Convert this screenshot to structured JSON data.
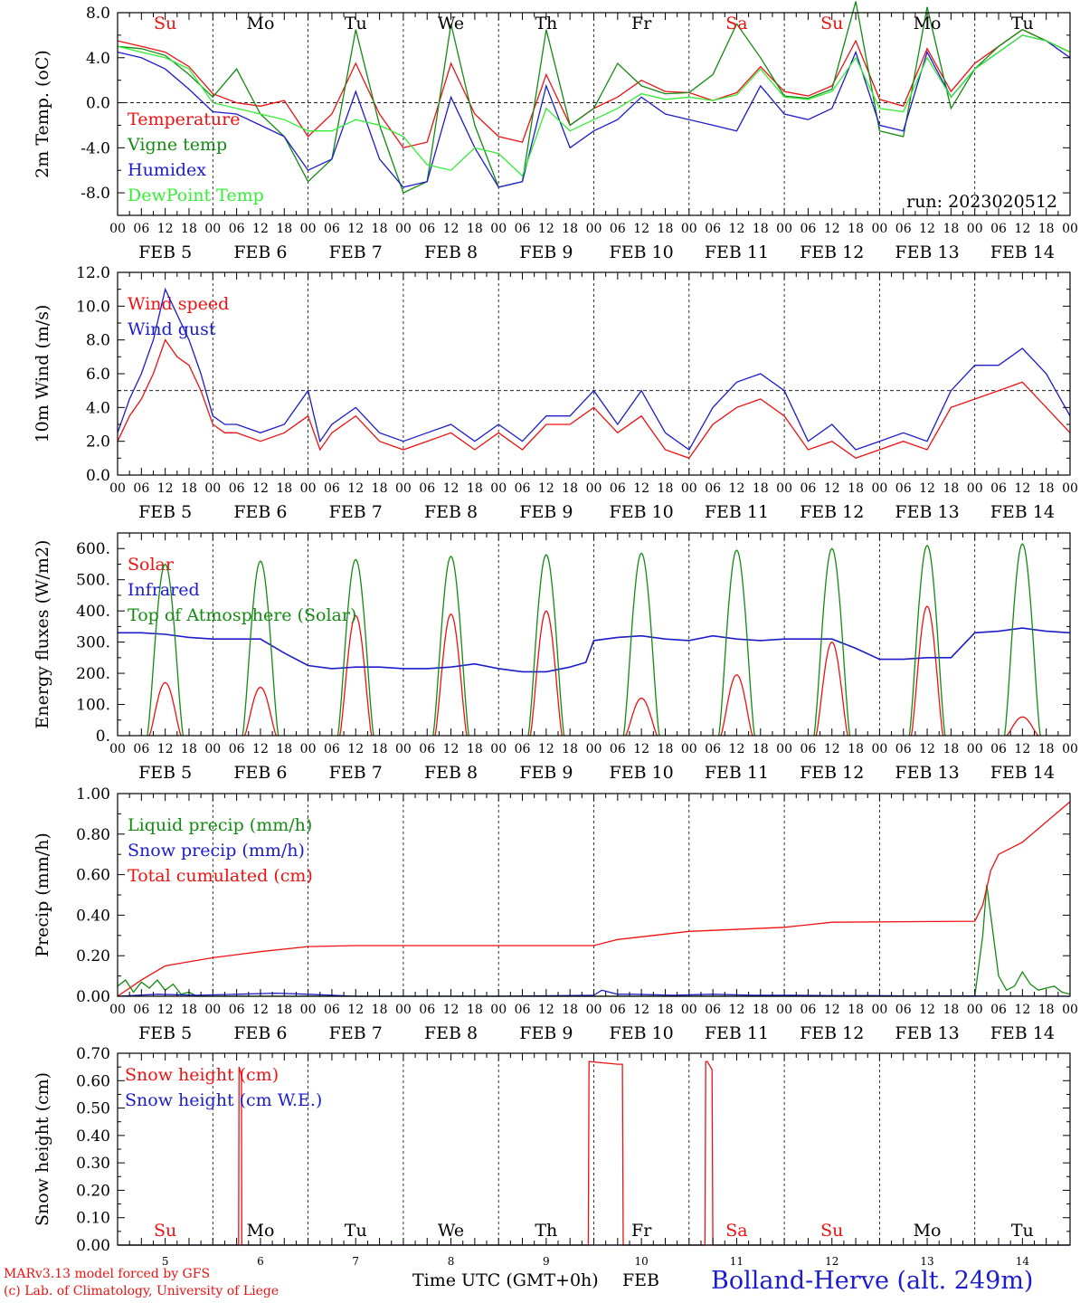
{
  "colors": {
    "red": "#ee1111",
    "dark_green": "#138a13",
    "blue": "#1c1ccc",
    "light_green": "#33ee33"
  },
  "footer": {
    "model": "MARv3.13 model forced by GFS",
    "lab": "(c) Lab. of Climatology, University of Liege",
    "x_title": "Time UTC (GMT+0h)",
    "month": "FEB",
    "station": "Bolland-Herve (alt. 249m)",
    "run": "run: 2023020512"
  },
  "days": {
    "weekday": [
      "Su",
      "Mo",
      "Tu",
      "We",
      "Th",
      "Fr",
      "Sa",
      "Su",
      "Mo",
      "Tu"
    ],
    "weekday_color": [
      "red",
      "black",
      "black",
      "black",
      "black",
      "black",
      "red",
      "red",
      "black",
      "black"
    ],
    "date_label": [
      "FEB  5",
      "FEB  6",
      "FEB  7",
      "FEB  8",
      "FEB  9",
      "FEB 10",
      "FEB 11",
      "FEB 12",
      "FEB 13",
      "FEB 14"
    ],
    "day_number": [
      "5",
      "6",
      "7",
      "8",
      "9",
      "10",
      "11",
      "12",
      "13",
      "14"
    ],
    "hour_labels": [
      "00",
      "06",
      "12",
      "18"
    ],
    "end_hour": "00"
  },
  "chart_data": [
    {
      "id": "temp",
      "type": "line",
      "ylabel": "2m Temp. (oC)",
      "ylim": [
        -10,
        8
      ],
      "yticks": [
        -8,
        -4,
        0,
        4,
        8
      ],
      "ytick_labels": [
        "-8.0",
        "-4.0",
        "0.0",
        "4.0",
        "8.0"
      ],
      "ref_line": 0,
      "x_unit": "hours since FEB 5 00 UTC",
      "series": [
        {
          "name": "Temperature",
          "color": "red",
          "x": [
            0,
            6,
            12,
            18,
            24,
            30,
            36,
            42,
            48,
            54,
            60,
            66,
            72,
            78,
            84,
            90,
            96,
            102,
            108,
            114,
            120,
            126,
            132,
            138,
            144,
            150,
            156,
            162,
            168,
            174,
            180,
            186,
            192,
            198,
            204,
            210,
            216,
            222,
            228,
            234,
            240
          ],
          "y": [
            5.5,
            5,
            4.5,
            3.2,
            0.8,
            0,
            -0.3,
            0.2,
            -3,
            -1,
            3.5,
            -1,
            -4,
            -3.5,
            3.5,
            -1,
            -3,
            -3.5,
            2.5,
            -2,
            -0.5,
            0.5,
            2,
            1,
            0.9,
            0.2,
            0.9,
            3.2,
            1,
            0.6,
            1.5,
            5.5,
            0.3,
            -0.3,
            4.8,
            1,
            3.5,
            5,
            6.5,
            5.5,
            4.5
          ]
        },
        {
          "name": "Vigne temp",
          "color": "dark_green",
          "x": [
            0,
            6,
            12,
            18,
            24,
            30,
            36,
            42,
            48,
            54,
            60,
            66,
            72,
            78,
            84,
            90,
            96,
            102,
            108,
            114,
            120,
            126,
            132,
            138,
            144,
            150,
            156,
            162,
            168,
            174,
            180,
            186,
            192,
            198,
            204,
            210,
            216,
            222,
            228,
            234,
            240
          ],
          "y": [
            5,
            4.8,
            4.2,
            2.5,
            0.5,
            3,
            -1,
            -3,
            -7,
            -5,
            6.5,
            -2,
            -8,
            -7,
            7,
            -2,
            -7.5,
            -7,
            6.5,
            -2,
            -0.5,
            3.5,
            1.5,
            0.8,
            0.9,
            2.5,
            7,
            4,
            0.6,
            0.4,
            1.2,
            9,
            -2.5,
            -3,
            8.5,
            -0.5,
            3,
            5,
            6.5,
            5.5,
            4.5
          ]
        },
        {
          "name": "Humidex",
          "color": "blue",
          "x": [
            0,
            6,
            12,
            18,
            24,
            30,
            36,
            42,
            48,
            54,
            60,
            66,
            72,
            78,
            84,
            90,
            96,
            102,
            108,
            114,
            120,
            126,
            132,
            138,
            144,
            150,
            156,
            162,
            168,
            174,
            180,
            186,
            192,
            198,
            204,
            210,
            216,
            222,
            228,
            234,
            240
          ],
          "y": [
            4.5,
            4,
            3,
            1.2,
            -0.8,
            -1,
            -2,
            -3,
            -6,
            -5,
            1,
            -5,
            -7.5,
            -7,
            0.5,
            -4,
            -7.5,
            -7,
            1.5,
            -4,
            -2.5,
            -1.5,
            0.5,
            -1,
            -1.5,
            -2,
            -2.5,
            1.5,
            -1,
            -1.5,
            -0.5,
            4.5,
            -2,
            -2.5,
            4.5,
            0.5,
            3,
            4.5,
            6,
            5.5,
            4
          ]
        },
        {
          "name": "DewPoint Temp",
          "color": "light_green",
          "x": [
            0,
            6,
            12,
            18,
            24,
            30,
            36,
            42,
            48,
            54,
            60,
            66,
            72,
            78,
            84,
            90,
            96,
            102,
            108,
            114,
            120,
            126,
            132,
            138,
            144,
            150,
            156,
            162,
            168,
            174,
            180,
            186,
            192,
            198,
            204,
            210,
            216,
            222,
            228,
            234,
            240
          ],
          "y": [
            5,
            4.5,
            4,
            3,
            0,
            -0.5,
            -1,
            -1.5,
            -2.5,
            -2.5,
            -1.5,
            -2,
            -3,
            -5.5,
            -6,
            -4,
            -4.5,
            -6.5,
            -0.5,
            -2.5,
            -1.5,
            -0.5,
            0.8,
            0.3,
            0.5,
            0.2,
            0.7,
            3,
            0.5,
            0.3,
            1,
            4,
            -0.5,
            -0.8,
            4,
            0.5,
            3,
            4.5,
            6,
            5.5,
            4.5
          ]
        }
      ]
    },
    {
      "id": "wind",
      "type": "line",
      "ylabel": "10m Wind (m/s)",
      "ylim": [
        0,
        12
      ],
      "yticks": [
        0,
        2,
        4,
        6,
        8,
        10,
        12
      ],
      "ytick_labels": [
        "0.0",
        "2.0",
        "4.0",
        "6.0",
        "8.0",
        "10.0",
        "12.0"
      ],
      "ref_line": 5,
      "x_unit": "hours since FEB 5 00 UTC",
      "series": [
        {
          "name": "Wind speed",
          "color": "red",
          "x": [
            0,
            3,
            6,
            9,
            12,
            15,
            18,
            21,
            24,
            27,
            30,
            36,
            42,
            48,
            51,
            54,
            60,
            66,
            72,
            78,
            84,
            90,
            96,
            102,
            108,
            114,
            120,
            126,
            132,
            138,
            144,
            150,
            156,
            162,
            168,
            174,
            180,
            186,
            192,
            198,
            204,
            210,
            216,
            222,
            228,
            234,
            240
          ],
          "y": [
            2,
            3.5,
            4.5,
            6,
            8,
            7,
            6.5,
            5,
            3,
            2.5,
            2.5,
            2,
            2.5,
            3.5,
            1.5,
            2.5,
            3.5,
            2,
            1.5,
            2,
            2.5,
            1.5,
            2.5,
            1.5,
            3,
            3,
            4,
            2.5,
            3.5,
            1.5,
            1,
            3,
            4,
            4.5,
            3.5,
            1.5,
            2,
            1,
            1.5,
            2,
            1.5,
            4,
            4.5,
            5,
            5.5,
            4,
            2.5
          ]
        },
        {
          "name": "Wind gust",
          "color": "blue",
          "x": [
            0,
            3,
            6,
            9,
            12,
            15,
            18,
            21,
            24,
            27,
            30,
            36,
            42,
            48,
            51,
            54,
            60,
            66,
            72,
            78,
            84,
            90,
            96,
            102,
            108,
            114,
            120,
            126,
            132,
            138,
            144,
            150,
            156,
            162,
            168,
            174,
            180,
            186,
            192,
            198,
            204,
            210,
            216,
            222,
            228,
            234,
            240
          ],
          "y": [
            2.5,
            4.5,
            6,
            8,
            11,
            9.5,
            8,
            6,
            3.5,
            3,
            3,
            2.5,
            3,
            5,
            2,
            3,
            4,
            2.5,
            2,
            2.5,
            3,
            2,
            3,
            2,
            3.5,
            3.5,
            5,
            3,
            5,
            2.5,
            1.5,
            4,
            5.5,
            6,
            5,
            2,
            3,
            1.5,
            2,
            2.5,
            2,
            5,
            6.5,
            6.5,
            7.5,
            6,
            3.5
          ]
        }
      ]
    },
    {
      "id": "energy",
      "type": "line",
      "ylabel": "Energy fluxes (W/m2)",
      "ylim": [
        0,
        650
      ],
      "yticks": [
        0,
        100,
        200,
        300,
        400,
        500,
        600
      ],
      "ytick_labels": [
        "0.",
        "100.",
        "200.",
        "300.",
        "400.",
        "500.",
        "600."
      ],
      "x_unit": "hours since FEB 5 00 UTC",
      "series": [
        {
          "name": "Solar",
          "color": "red",
          "noon_peaks": [
            [
              0,
              170
            ],
            [
              1,
              155
            ],
            [
              2,
              385
            ],
            [
              3,
              390
            ],
            [
              4,
              400
            ],
            [
              5,
              120
            ],
            [
              6,
              195
            ],
            [
              7,
              300
            ],
            [
              8,
              415
            ],
            [
              9,
              60
            ]
          ]
        },
        {
          "name": "Infrared",
          "color": "blue",
          "x": [
            0,
            6,
            12,
            18,
            24,
            30,
            36,
            42,
            48,
            54,
            60,
            66,
            72,
            78,
            84,
            90,
            96,
            102,
            108,
            114,
            118,
            120,
            126,
            132,
            138,
            144,
            150,
            156,
            162,
            168,
            174,
            180,
            186,
            192,
            198,
            204,
            210,
            216,
            222,
            228,
            234,
            240
          ],
          "y": [
            330,
            330,
            325,
            315,
            310,
            310,
            310,
            265,
            225,
            215,
            220,
            220,
            215,
            215,
            220,
            230,
            215,
            205,
            205,
            220,
            235,
            305,
            315,
            320,
            310,
            305,
            320,
            310,
            305,
            310,
            310,
            310,
            280,
            245,
            245,
            250,
            250,
            330,
            335,
            345,
            335,
            330
          ]
        },
        {
          "name": "Top of Atmosphere (Solar)",
          "color": "dark_green",
          "noon_peaks": [
            [
              0,
              550
            ],
            [
              1,
              560
            ],
            [
              2,
              565
            ],
            [
              3,
              575
            ],
            [
              4,
              580
            ],
            [
              5,
              585
            ],
            [
              6,
              595
            ],
            [
              7,
              600
            ],
            [
              8,
              610
            ],
            [
              9,
              615
            ]
          ]
        }
      ]
    },
    {
      "id": "precip",
      "type": "line",
      "ylabel": "Precip (mm/h)",
      "ylim": [
        0,
        1
      ],
      "yticks": [
        0,
        0.2,
        0.4,
        0.6,
        0.8,
        1.0
      ],
      "ytick_labels": [
        "0.00",
        "0.20",
        "0.40",
        "0.60",
        "0.80",
        "1.00"
      ],
      "x_unit": "hours since FEB 5 00 UTC",
      "series": [
        {
          "name": "Liquid precip (mm/h)",
          "color": "dark_green",
          "x": [
            0,
            2,
            4,
            6,
            8,
            10,
            12,
            14,
            16,
            18,
            20,
            30,
            40,
            96,
            120,
            216,
            218,
            219,
            220,
            222,
            224,
            226,
            228,
            230,
            232,
            234,
            236,
            238,
            240
          ],
          "y": [
            0.05,
            0.08,
            0.02,
            0.07,
            0.04,
            0.08,
            0.03,
            0.06,
            0.01,
            0.02,
            0,
            0,
            0,
            0,
            0,
            0,
            0.3,
            0.55,
            0.4,
            0.1,
            0.03,
            0.05,
            0.12,
            0.06,
            0.03,
            0.04,
            0.05,
            0.02,
            0.01
          ]
        },
        {
          "name": "Snow precip (mm/h)",
          "color": "blue",
          "x": [
            0,
            10,
            20,
            30,
            40,
            48,
            60,
            96,
            120,
            122,
            126,
            130,
            140,
            150,
            160,
            170,
            180,
            190,
            200,
            210,
            216,
            220,
            240
          ],
          "y": [
            0,
            0.01,
            0.005,
            0.01,
            0.015,
            0.01,
            0,
            0,
            0.005,
            0.03,
            0.01,
            0.01,
            0.005,
            0.01,
            0.005,
            0.005,
            0.003,
            0.003,
            0.002,
            0.002,
            0.002,
            0.001,
            0
          ]
        },
        {
          "name": "Total cumulated (cm)",
          "color": "red",
          "x": [
            0,
            6,
            12,
            18,
            24,
            36,
            48,
            60,
            96,
            120,
            126,
            144,
            168,
            180,
            216,
            218,
            220,
            222,
            228,
            234,
            240
          ],
          "y": [
            0,
            0.08,
            0.15,
            0.17,
            0.19,
            0.22,
            0.245,
            0.25,
            0.25,
            0.25,
            0.28,
            0.32,
            0.34,
            0.365,
            0.37,
            0.45,
            0.62,
            0.7,
            0.76,
            0.86,
            0.96
          ]
        }
      ]
    },
    {
      "id": "snow",
      "type": "line",
      "ylabel": "Snow height (cm)",
      "ylim": [
        0,
        0.7
      ],
      "yticks": [
        0,
        0.1,
        0.2,
        0.3,
        0.4,
        0.5,
        0.6,
        0.7
      ],
      "ytick_labels": [
        "0.00",
        "0.10",
        "0.20",
        "0.30",
        "0.40",
        "0.50",
        "0.60",
        "0.70"
      ],
      "x_unit": "hours since FEB 5 00 UTC",
      "series": [
        {
          "name": "Snow height (cm)",
          "color": "red",
          "x": [
            0,
            30.5,
            30.6,
            31.2,
            31.3,
            118.6,
            118.8,
            126,
            127.2,
            127.4,
            148,
            148.2,
            148.6,
            149.8,
            150,
            240
          ],
          "y": [
            0,
            0,
            0.65,
            0.62,
            0,
            0,
            0.67,
            0.66,
            0.66,
            0,
            0,
            0.67,
            0.67,
            0.64,
            0,
            0
          ]
        },
        {
          "name": "Snow height (cm W.E.)",
          "color": "blue",
          "x": [
            0,
            240
          ],
          "y": [
            0,
            0
          ]
        }
      ]
    }
  ]
}
